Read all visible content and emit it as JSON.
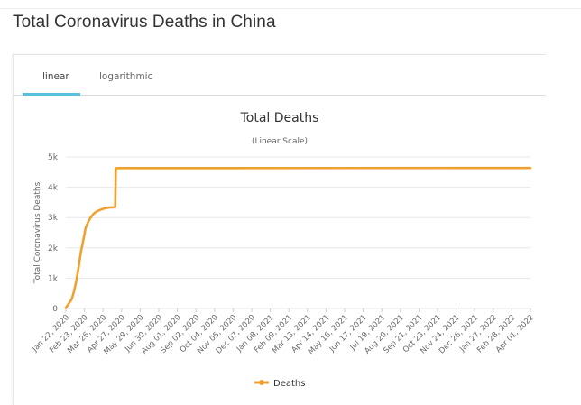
{
  "page": {
    "title": "Total Coronavirus Deaths in China"
  },
  "tabs": [
    {
      "label": "linear",
      "active": true
    },
    {
      "label": "logarithmic",
      "active": false
    }
  ],
  "colors": {
    "series": "#f0a030",
    "tab_active": "#5bc0de",
    "grid": "#e8e8e8"
  },
  "chart_data": {
    "type": "line",
    "title": "Total Deaths",
    "subtitle": "(Linear Scale)",
    "ylabel": "Total Coronavirus Deaths",
    "xlabel": "",
    "ylim": [
      0,
      5000
    ],
    "y_ticks": [
      0,
      1000,
      2000,
      3000,
      4000,
      5000
    ],
    "y_tick_labels": [
      "0",
      "1k",
      "2k",
      "3k",
      "4k",
      "5k"
    ],
    "x_tick_labels": [
      "Jan 22, 2020",
      "Feb 23, 2020",
      "Mar 26, 2020",
      "Apr 27, 2020",
      "May 29, 2020",
      "Jun 30, 2020",
      "Aug 01, 2020",
      "Sep 02, 2020",
      "Oct 04, 2020",
      "Nov 05, 2020",
      "Dec 07, 2020",
      "Jan 08, 2021",
      "Feb 09, 2021",
      "Mar 13, 2021",
      "Apr 14, 2021",
      "May 16, 2021",
      "Jun 17, 2021",
      "Jul 19, 2021",
      "Aug 20, 2021",
      "Sep 21, 2021",
      "Oct 23, 2021",
      "Nov 24, 2021",
      "Dec 26, 2021",
      "Jan 27, 2022",
      "Feb 28, 2022",
      "Apr 01, 2022"
    ],
    "grid": true,
    "legend": "bottom-center",
    "series": [
      {
        "name": "Deaths",
        "points": [
          [
            "Jan 22, 2020",
            17
          ],
          [
            "Feb 01, 2020",
            300
          ],
          [
            "Feb 05, 2020",
            560
          ],
          [
            "Feb 09, 2020",
            910
          ],
          [
            "Feb 13, 2020",
            1370
          ],
          [
            "Feb 17, 2020",
            1870
          ],
          [
            "Feb 21, 2020",
            2240
          ],
          [
            "Feb 25, 2020",
            2660
          ],
          [
            "Feb 29, 2020",
            2840
          ],
          [
            "Mar 04, 2020",
            2980
          ],
          [
            "Mar 10, 2020",
            3130
          ],
          [
            "Mar 16, 2020",
            3210
          ],
          [
            "Mar 26, 2020",
            3290
          ],
          [
            "Apr 05, 2020",
            3330
          ],
          [
            "Apr 16, 2020",
            3342
          ],
          [
            "Apr 17, 2020",
            4632
          ],
          [
            "Apr 27, 2020",
            4633
          ],
          [
            "Jun 30, 2020",
            4634
          ],
          [
            "Apr 01, 2022",
            4638
          ]
        ]
      }
    ]
  }
}
